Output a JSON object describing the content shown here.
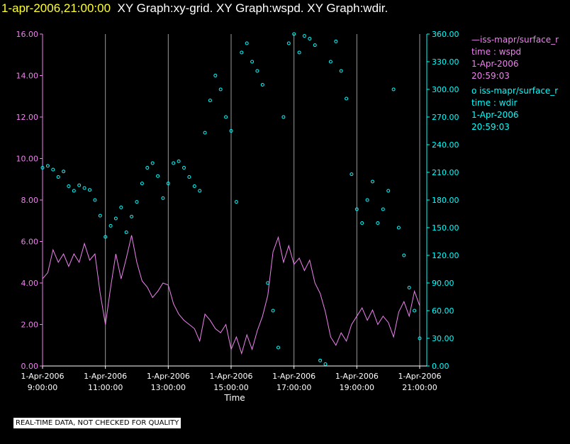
{
  "header": {
    "timestamp": "1-apr-2006,21:00:00",
    "graphs": "XY Graph:xy-grid.  XY Graph:wspd.  XY Graph:wdir."
  },
  "qc_notice": "REAL-TIME DATA, NOT CHECKED FOR QUALITY",
  "colors": {
    "wspd": "#ee82ee",
    "wdir": "#00ffff",
    "left_axis": "#ee82ee",
    "right_axis": "#00ffff",
    "timestamp": "#ffff33"
  },
  "legend": [
    {
      "name_line": "—iss-mapr/surface_r",
      "var_line": "time : wspd",
      "date_line": "1-Apr-2006",
      "time_line": "20:59:03"
    },
    {
      "name_line": "o  iss-mapr/surface_r",
      "var_line": "time : wdir",
      "date_line": "1-Apr-2006",
      "time_line": "20:59:03"
    }
  ],
  "chart_data": {
    "type": "line",
    "xlabel": "Time",
    "x_ticks": [
      {
        "date": "1-Apr-2006",
        "time": "9:00:00"
      },
      {
        "date": "1-Apr-2006",
        "time": "11:00:00"
      },
      {
        "date": "1-Apr-2006",
        "time": "13:00:00"
      },
      {
        "date": "1-Apr-2006",
        "time": "15:00:00"
      },
      {
        "date": "1-Apr-2006",
        "time": "17:00:00"
      },
      {
        "date": "1-Apr-2006",
        "time": "19:00:00"
      },
      {
        "date": "1-Apr-2006",
        "time": "21:00:00"
      }
    ],
    "xlim": [
      "1-Apr-2006 09:00",
      "1-Apr-2006 21:00"
    ],
    "vertical_grid": true,
    "left_axis": {
      "ylim": [
        0,
        16
      ],
      "ticks": [
        "0.00",
        "2.00",
        "4.00",
        "6.00",
        "8.00",
        "10.00",
        "12.00",
        "14.00",
        "16.00"
      ]
    },
    "right_axis": {
      "ylim": [
        0,
        360
      ],
      "ticks": [
        "0.00",
        "30.00",
        "60.00",
        "90.00",
        "120.00",
        "150.00",
        "180.00",
        "210.00",
        "240.00",
        "270.00",
        "300.00",
        "330.00",
        "360.00"
      ]
    },
    "series": [
      {
        "name": "iss-mapr/surface_r time : wspd",
        "axis": "left",
        "style": "line",
        "points": [
          [
            "09:00",
            4.2
          ],
          [
            "09:10",
            4.5
          ],
          [
            "09:20",
            5.6
          ],
          [
            "09:30",
            5.0
          ],
          [
            "09:40",
            5.4
          ],
          [
            "09:50",
            4.8
          ],
          [
            "10:00",
            5.4
          ],
          [
            "10:10",
            5.0
          ],
          [
            "10:20",
            5.9
          ],
          [
            "10:30",
            5.1
          ],
          [
            "10:40",
            5.4
          ],
          [
            "10:50",
            3.5
          ],
          [
            "11:00",
            2.0
          ],
          [
            "11:10",
            3.8
          ],
          [
            "11:20",
            5.4
          ],
          [
            "11:30",
            4.2
          ],
          [
            "11:40",
            5.2
          ],
          [
            "11:50",
            6.3
          ],
          [
            "12:00",
            5.0
          ],
          [
            "12:10",
            4.1
          ],
          [
            "12:20",
            3.8
          ],
          [
            "12:30",
            3.3
          ],
          [
            "12:40",
            3.6
          ],
          [
            "12:50",
            4.0
          ],
          [
            "13:00",
            3.9
          ],
          [
            "13:10",
            3.0
          ],
          [
            "13:20",
            2.5
          ],
          [
            "13:30",
            2.2
          ],
          [
            "13:40",
            2.0
          ],
          [
            "13:50",
            1.8
          ],
          [
            "14:00",
            1.2
          ],
          [
            "14:10",
            2.5
          ],
          [
            "14:20",
            2.2
          ],
          [
            "14:30",
            1.8
          ],
          [
            "14:40",
            1.6
          ],
          [
            "14:50",
            2.0
          ],
          [
            "15:00",
            0.8
          ],
          [
            "15:10",
            1.4
          ],
          [
            "15:20",
            0.6
          ],
          [
            "15:30",
            1.5
          ],
          [
            "15:40",
            0.8
          ],
          [
            "15:50",
            1.7
          ],
          [
            "16:00",
            2.4
          ],
          [
            "16:10",
            3.4
          ],
          [
            "16:20",
            5.5
          ],
          [
            "16:30",
            6.2
          ],
          [
            "16:40",
            5.0
          ],
          [
            "16:50",
            5.8
          ],
          [
            "17:00",
            4.9
          ],
          [
            "17:10",
            5.2
          ],
          [
            "17:20",
            4.6
          ],
          [
            "17:30",
            5.1
          ],
          [
            "17:40",
            4.0
          ],
          [
            "17:50",
            3.5
          ],
          [
            "18:00",
            2.6
          ],
          [
            "18:10",
            1.4
          ],
          [
            "18:20",
            1.0
          ],
          [
            "18:30",
            1.6
          ],
          [
            "18:40",
            1.2
          ],
          [
            "18:50",
            2.0
          ],
          [
            "19:00",
            2.4
          ],
          [
            "19:10",
            2.8
          ],
          [
            "19:20",
            2.2
          ],
          [
            "19:30",
            2.7
          ],
          [
            "19:40",
            2.0
          ],
          [
            "19:50",
            2.4
          ],
          [
            "20:00",
            2.1
          ],
          [
            "20:10",
            1.4
          ],
          [
            "20:20",
            2.6
          ],
          [
            "20:30",
            3.1
          ],
          [
            "20:40",
            2.4
          ],
          [
            "20:50",
            3.6
          ],
          [
            "21:00",
            2.9
          ]
        ]
      },
      {
        "name": "iss-mapr/surface_r time : wdir",
        "axis": "right",
        "style": "scatter",
        "points": [
          [
            "09:00",
            215
          ],
          [
            "09:10",
            217
          ],
          [
            "09:20",
            213
          ],
          [
            "09:30",
            205
          ],
          [
            "09:40",
            211
          ],
          [
            "09:50",
            195
          ],
          [
            "10:00",
            190
          ],
          [
            "10:10",
            196
          ],
          [
            "10:20",
            193
          ],
          [
            "10:30",
            191
          ],
          [
            "10:40",
            180
          ],
          [
            "10:50",
            163
          ],
          [
            "11:00",
            140
          ],
          [
            "11:10",
            152
          ],
          [
            "11:20",
            160
          ],
          [
            "11:30",
            172
          ],
          [
            "11:40",
            145
          ],
          [
            "11:50",
            162
          ],
          [
            "12:00",
            178
          ],
          [
            "12:10",
            198
          ],
          [
            "12:20",
            215
          ],
          [
            "12:30",
            220
          ],
          [
            "12:40",
            206
          ],
          [
            "12:50",
            182
          ],
          [
            "13:00",
            198
          ],
          [
            "13:10",
            220
          ],
          [
            "13:20",
            222
          ],
          [
            "13:30",
            215
          ],
          [
            "13:40",
            205
          ],
          [
            "13:50",
            195
          ],
          [
            "14:00",
            190
          ],
          [
            "14:10",
            253
          ],
          [
            "14:20",
            288
          ],
          [
            "14:30",
            315
          ],
          [
            "14:40",
            300
          ],
          [
            "14:50",
            270
          ],
          [
            "15:00",
            255
          ],
          [
            "15:10",
            178
          ],
          [
            "15:20",
            340
          ],
          [
            "15:30",
            350
          ],
          [
            "15:40",
            330
          ],
          [
            "15:50",
            320
          ],
          [
            "16:00",
            305
          ],
          [
            "16:10",
            90
          ],
          [
            "16:20",
            60
          ],
          [
            "16:30",
            20
          ],
          [
            "16:40",
            270
          ],
          [
            "16:50",
            350
          ],
          [
            "17:00",
            360
          ],
          [
            "17:10",
            340
          ],
          [
            "17:20",
            358
          ],
          [
            "17:30",
            355
          ],
          [
            "17:40",
            348
          ],
          [
            "17:50",
            6
          ],
          [
            "18:00",
            2
          ],
          [
            "18:10",
            330
          ],
          [
            "18:20",
            352
          ],
          [
            "18:30",
            320
          ],
          [
            "18:40",
            290
          ],
          [
            "18:50",
            208
          ],
          [
            "19:00",
            170
          ],
          [
            "19:10",
            155
          ],
          [
            "19:20",
            180
          ],
          [
            "19:30",
            200
          ],
          [
            "19:40",
            155
          ],
          [
            "19:50",
            170
          ],
          [
            "20:00",
            190
          ],
          [
            "20:10",
            300
          ],
          [
            "20:20",
            150
          ],
          [
            "20:30",
            120
          ],
          [
            "20:40",
            85
          ],
          [
            "20:50",
            60
          ],
          [
            "21:00",
            30
          ]
        ]
      }
    ]
  }
}
